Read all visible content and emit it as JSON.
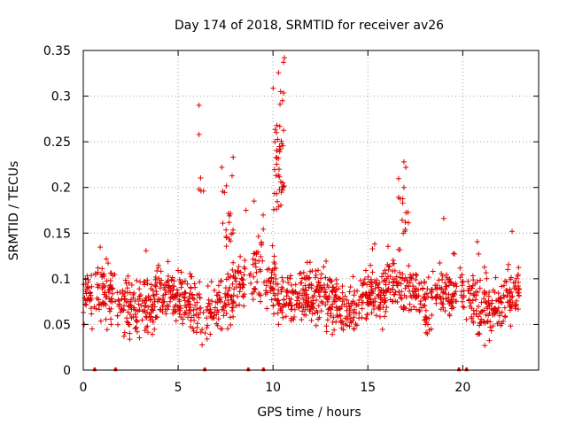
{
  "chart_data": {
    "type": "scatter",
    "title": "Day 174 of 2018, SRMTID for receiver av26",
    "xlabel": "GPS time / hours",
    "ylabel": "SRMTID / TECUs",
    "xlim": [
      0,
      24
    ],
    "ylim": [
      0,
      0.35
    ],
    "x_ticks": [
      0,
      5,
      10,
      15,
      20
    ],
    "x_tick_labels": [
      "0",
      "5",
      "10",
      "15",
      "20"
    ],
    "y_ticks": [
      0,
      0.05,
      0.1,
      0.15,
      0.2,
      0.25,
      0.3,
      0.35
    ],
    "y_tick_labels": [
      "0",
      "0.05",
      "0.1",
      "0.15",
      "0.2",
      "0.25",
      "0.3",
      "0.35"
    ],
    "grid": true,
    "marker": "+",
    "color": "#e00000",
    "x_range_of_points": [
      0,
      23
    ],
    "typical_band": [
      0.03,
      0.15
    ],
    "peaks": [
      {
        "x": 6.1,
        "y": 0.29
      },
      {
        "x": 6.1,
        "y": 0.258
      },
      {
        "x": 6.1,
        "y": 0.198
      },
      {
        "x": 7.3,
        "y": 0.222
      },
      {
        "x": 7.9,
        "y": 0.233
      },
      {
        "x": 9.0,
        "y": 0.185
      },
      {
        "x": 10.1,
        "y": 0.25
      },
      {
        "x": 10.2,
        "y": 0.268
      },
      {
        "x": 10.4,
        "y": 0.305
      },
      {
        "x": 10.5,
        "y": 0.295
      },
      {
        "x": 10.55,
        "y": 0.337
      },
      {
        "x": 10.6,
        "y": 0.342
      },
      {
        "x": 10.4,
        "y": 0.242
      },
      {
        "x": 16.9,
        "y": 0.228
      },
      {
        "x": 17.0,
        "y": 0.222
      },
      {
        "x": 16.9,
        "y": 0.2
      },
      {
        "x": 19.0,
        "y": 0.166
      },
      {
        "x": 22.6,
        "y": 0.152
      }
    ],
    "zero_markers_x": [
      0.6,
      1.7,
      6.4,
      8.7,
      9.5,
      19.8,
      20.2
    ]
  }
}
